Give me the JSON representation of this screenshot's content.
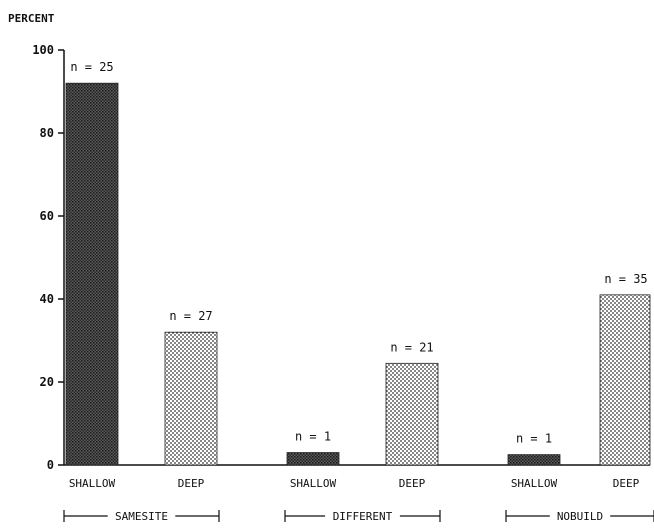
{
  "chart_data": {
    "type": "bar",
    "ylabel": "PERCENT",
    "ylim": [
      0,
      100
    ],
    "yticks": [
      0,
      20,
      40,
      60,
      80,
      100
    ],
    "ytick_labels": [
      "0",
      "20",
      "40",
      "60",
      "80",
      "100"
    ],
    "grid": false,
    "bars": [
      {
        "category": "SHALLOW",
        "group": "SAMESITE",
        "value": 92,
        "n_label": "n = 25",
        "fill": "dark"
      },
      {
        "category": "DEEP",
        "group": "SAMESITE",
        "value": 32,
        "n_label": "n = 27",
        "fill": "light"
      },
      {
        "category": "SHALLOW",
        "group": "DIFFERENT",
        "value": 3,
        "n_label": "n = 1",
        "fill": "dark"
      },
      {
        "category": "DEEP",
        "group": "DIFFERENT",
        "value": 24.5,
        "n_label": "n = 21",
        "fill": "light"
      },
      {
        "category": "SHALLOW",
        "group": "NOBUILD",
        "value": 2.5,
        "n_label": "n = 1",
        "fill": "dark"
      },
      {
        "category": "DEEP",
        "group": "NOBUILD",
        "value": 41,
        "n_label": "n = 35",
        "fill": "light"
      }
    ],
    "groups": [
      "SAMESITE",
      "DIFFERENT",
      "NOBUILD"
    ],
    "colors": {
      "dark": "#3a3a3a",
      "light": "#bdbdbd",
      "axis": "#111111"
    }
  }
}
